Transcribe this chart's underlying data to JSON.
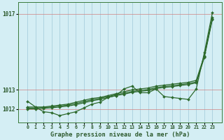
{
  "title": "Graphe pression niveau de la mer (hPa)",
  "xlabel_hours": [
    0,
    1,
    2,
    3,
    4,
    5,
    6,
    7,
    8,
    9,
    10,
    11,
    12,
    13,
    14,
    15,
    16,
    17,
    18,
    19,
    20,
    21,
    22,
    23
  ],
  "series_zigzag": [
    1012.4,
    1012.1,
    1011.85,
    1011.8,
    1011.65,
    1011.75,
    1011.85,
    1012.05,
    1012.25,
    1012.35,
    1012.6,
    1012.7,
    1013.05,
    1013.2,
    1012.85,
    1012.85,
    1013.05,
    1012.65,
    1012.6,
    1012.55,
    1012.5,
    1013.05,
    1014.95,
    1017.05
  ],
  "series_smooth1": [
    1012.1,
    1012.1,
    1012.1,
    1012.15,
    1012.2,
    1012.25,
    1012.35,
    1012.45,
    1012.55,
    1012.6,
    1012.7,
    1012.8,
    1012.9,
    1013.0,
    1013.05,
    1013.1,
    1013.2,
    1013.25,
    1013.3,
    1013.35,
    1013.4,
    1013.5,
    1014.8,
    1016.8
  ],
  "series_smooth2": [
    1012.05,
    1012.05,
    1012.08,
    1012.1,
    1012.15,
    1012.2,
    1012.28,
    1012.38,
    1012.48,
    1012.55,
    1012.65,
    1012.75,
    1012.82,
    1012.92,
    1012.97,
    1013.02,
    1013.12,
    1013.18,
    1013.22,
    1013.28,
    1013.33,
    1013.42,
    1014.75,
    1016.75
  ],
  "series_smooth3": [
    1012.0,
    1012.0,
    1012.03,
    1012.06,
    1012.1,
    1012.15,
    1012.22,
    1012.32,
    1012.42,
    1012.5,
    1012.6,
    1012.7,
    1012.77,
    1012.87,
    1012.92,
    1012.97,
    1013.07,
    1013.13,
    1013.17,
    1013.23,
    1013.28,
    1013.37,
    1014.7,
    1016.7
  ],
  "line_color": "#2d6a2d",
  "marker_color": "#2d6a2d",
  "bg_color": "#d4eef4",
  "grid_color_v": "#a0c8d8",
  "grid_color_h": "#d08080",
  "ylim_min": 1011.3,
  "ylim_max": 1017.6,
  "ytick_positions": [
    1012.0,
    1013.0,
    1017.0
  ],
  "ytick_labels": [
    "1012",
    "1013",
    "1017"
  ],
  "figsize": [
    3.2,
    2.0
  ],
  "dpi": 100
}
